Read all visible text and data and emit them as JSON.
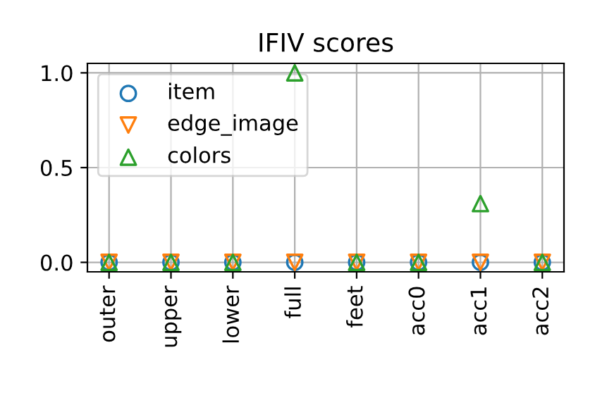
{
  "chart_data": {
    "type": "scatter",
    "title": "IFIV scores",
    "categories": [
      "outer",
      "upper",
      "lower",
      "full",
      "feet",
      "acc0",
      "acc1",
      "acc2"
    ],
    "series": [
      {
        "name": "item",
        "color": "#1f77b4",
        "marker": "circle",
        "values": [
          0,
          0,
          0,
          0,
          0,
          0,
          0,
          0
        ]
      },
      {
        "name": "edge_image",
        "color": "#ff7f0e",
        "marker": "triangle_down",
        "values": [
          0,
          0,
          0,
          0,
          0,
          0,
          0,
          0
        ]
      },
      {
        "name": "colors",
        "color": "#2ca02c",
        "marker": "triangle",
        "values": [
          0,
          0,
          0,
          1,
          0,
          0,
          0.31,
          0
        ]
      }
    ],
    "ylim": [
      -0.05,
      1.05
    ],
    "yticks": [
      {
        "value": 0,
        "label": "0.0"
      },
      {
        "value": 0.5,
        "label": "0.5"
      },
      {
        "value": 1,
        "label": "1.0"
      }
    ],
    "grid": true,
    "legend": "top left"
  }
}
